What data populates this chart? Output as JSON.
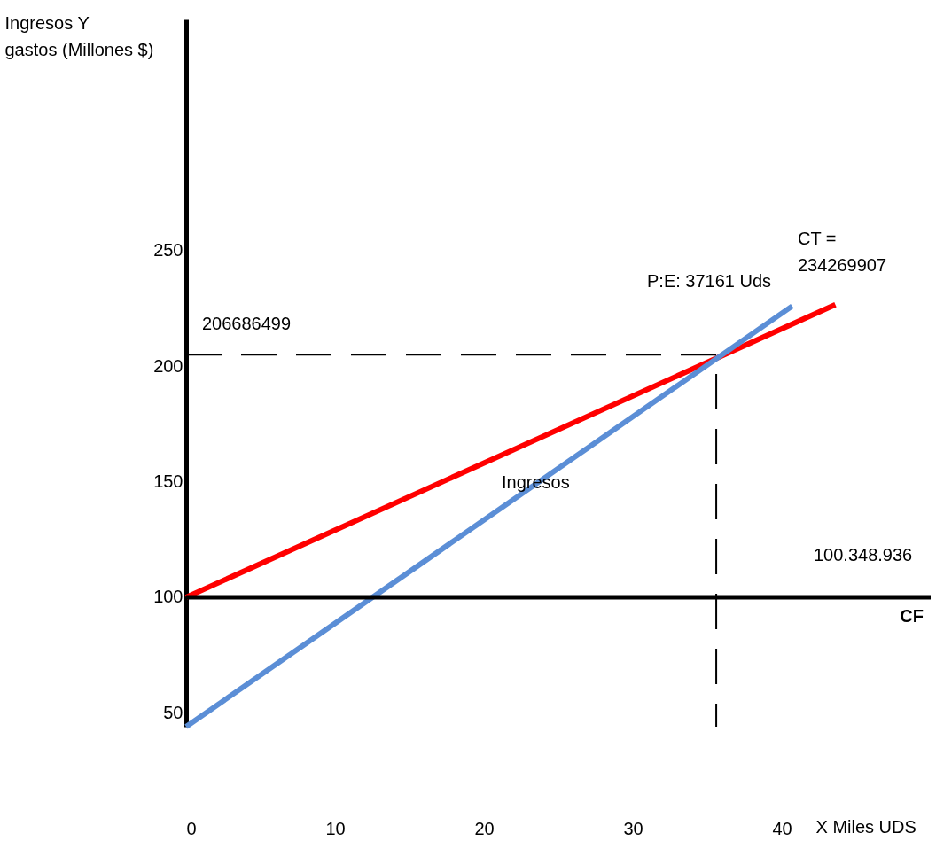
{
  "chart_data": {
    "type": "line",
    "xlabel": "X  Miles UDS",
    "ylabel": "Ingresos      Y\ngastos (Millones $)",
    "xlim": [
      0,
      50
    ],
    "ylim": [
      44,
      350
    ],
    "xticks": [
      0,
      10,
      20,
      30,
      40
    ],
    "yticks": [
      50,
      100,
      150,
      200,
      250
    ],
    "grid": false,
    "series": [
      {
        "color": "#ff0000",
        "x": [
          0,
          43.6
        ],
        "values": [
          100,
          226.6
        ]
      },
      {
        "color": "#5b8ed6",
        "x": [
          0,
          40.7
        ],
        "values": [
          44,
          226
        ]
      },
      {
        "color": "#000000",
        "line_style": "dashed",
        "x": [
          0,
          35.6,
          35.6
        ],
        "values": [
          205,
          205,
          44
        ]
      }
    ],
    "ref_lines": [
      {
        "axis": "y",
        "value": 100,
        "label": "CF",
        "color": "#000000",
        "line_style": "solid"
      }
    ],
    "annotations": [
      "206686499",
      "P:E: 37161 Uds",
      "CT =\n234269907",
      "Ingresos",
      "100.348.936"
    ]
  }
}
